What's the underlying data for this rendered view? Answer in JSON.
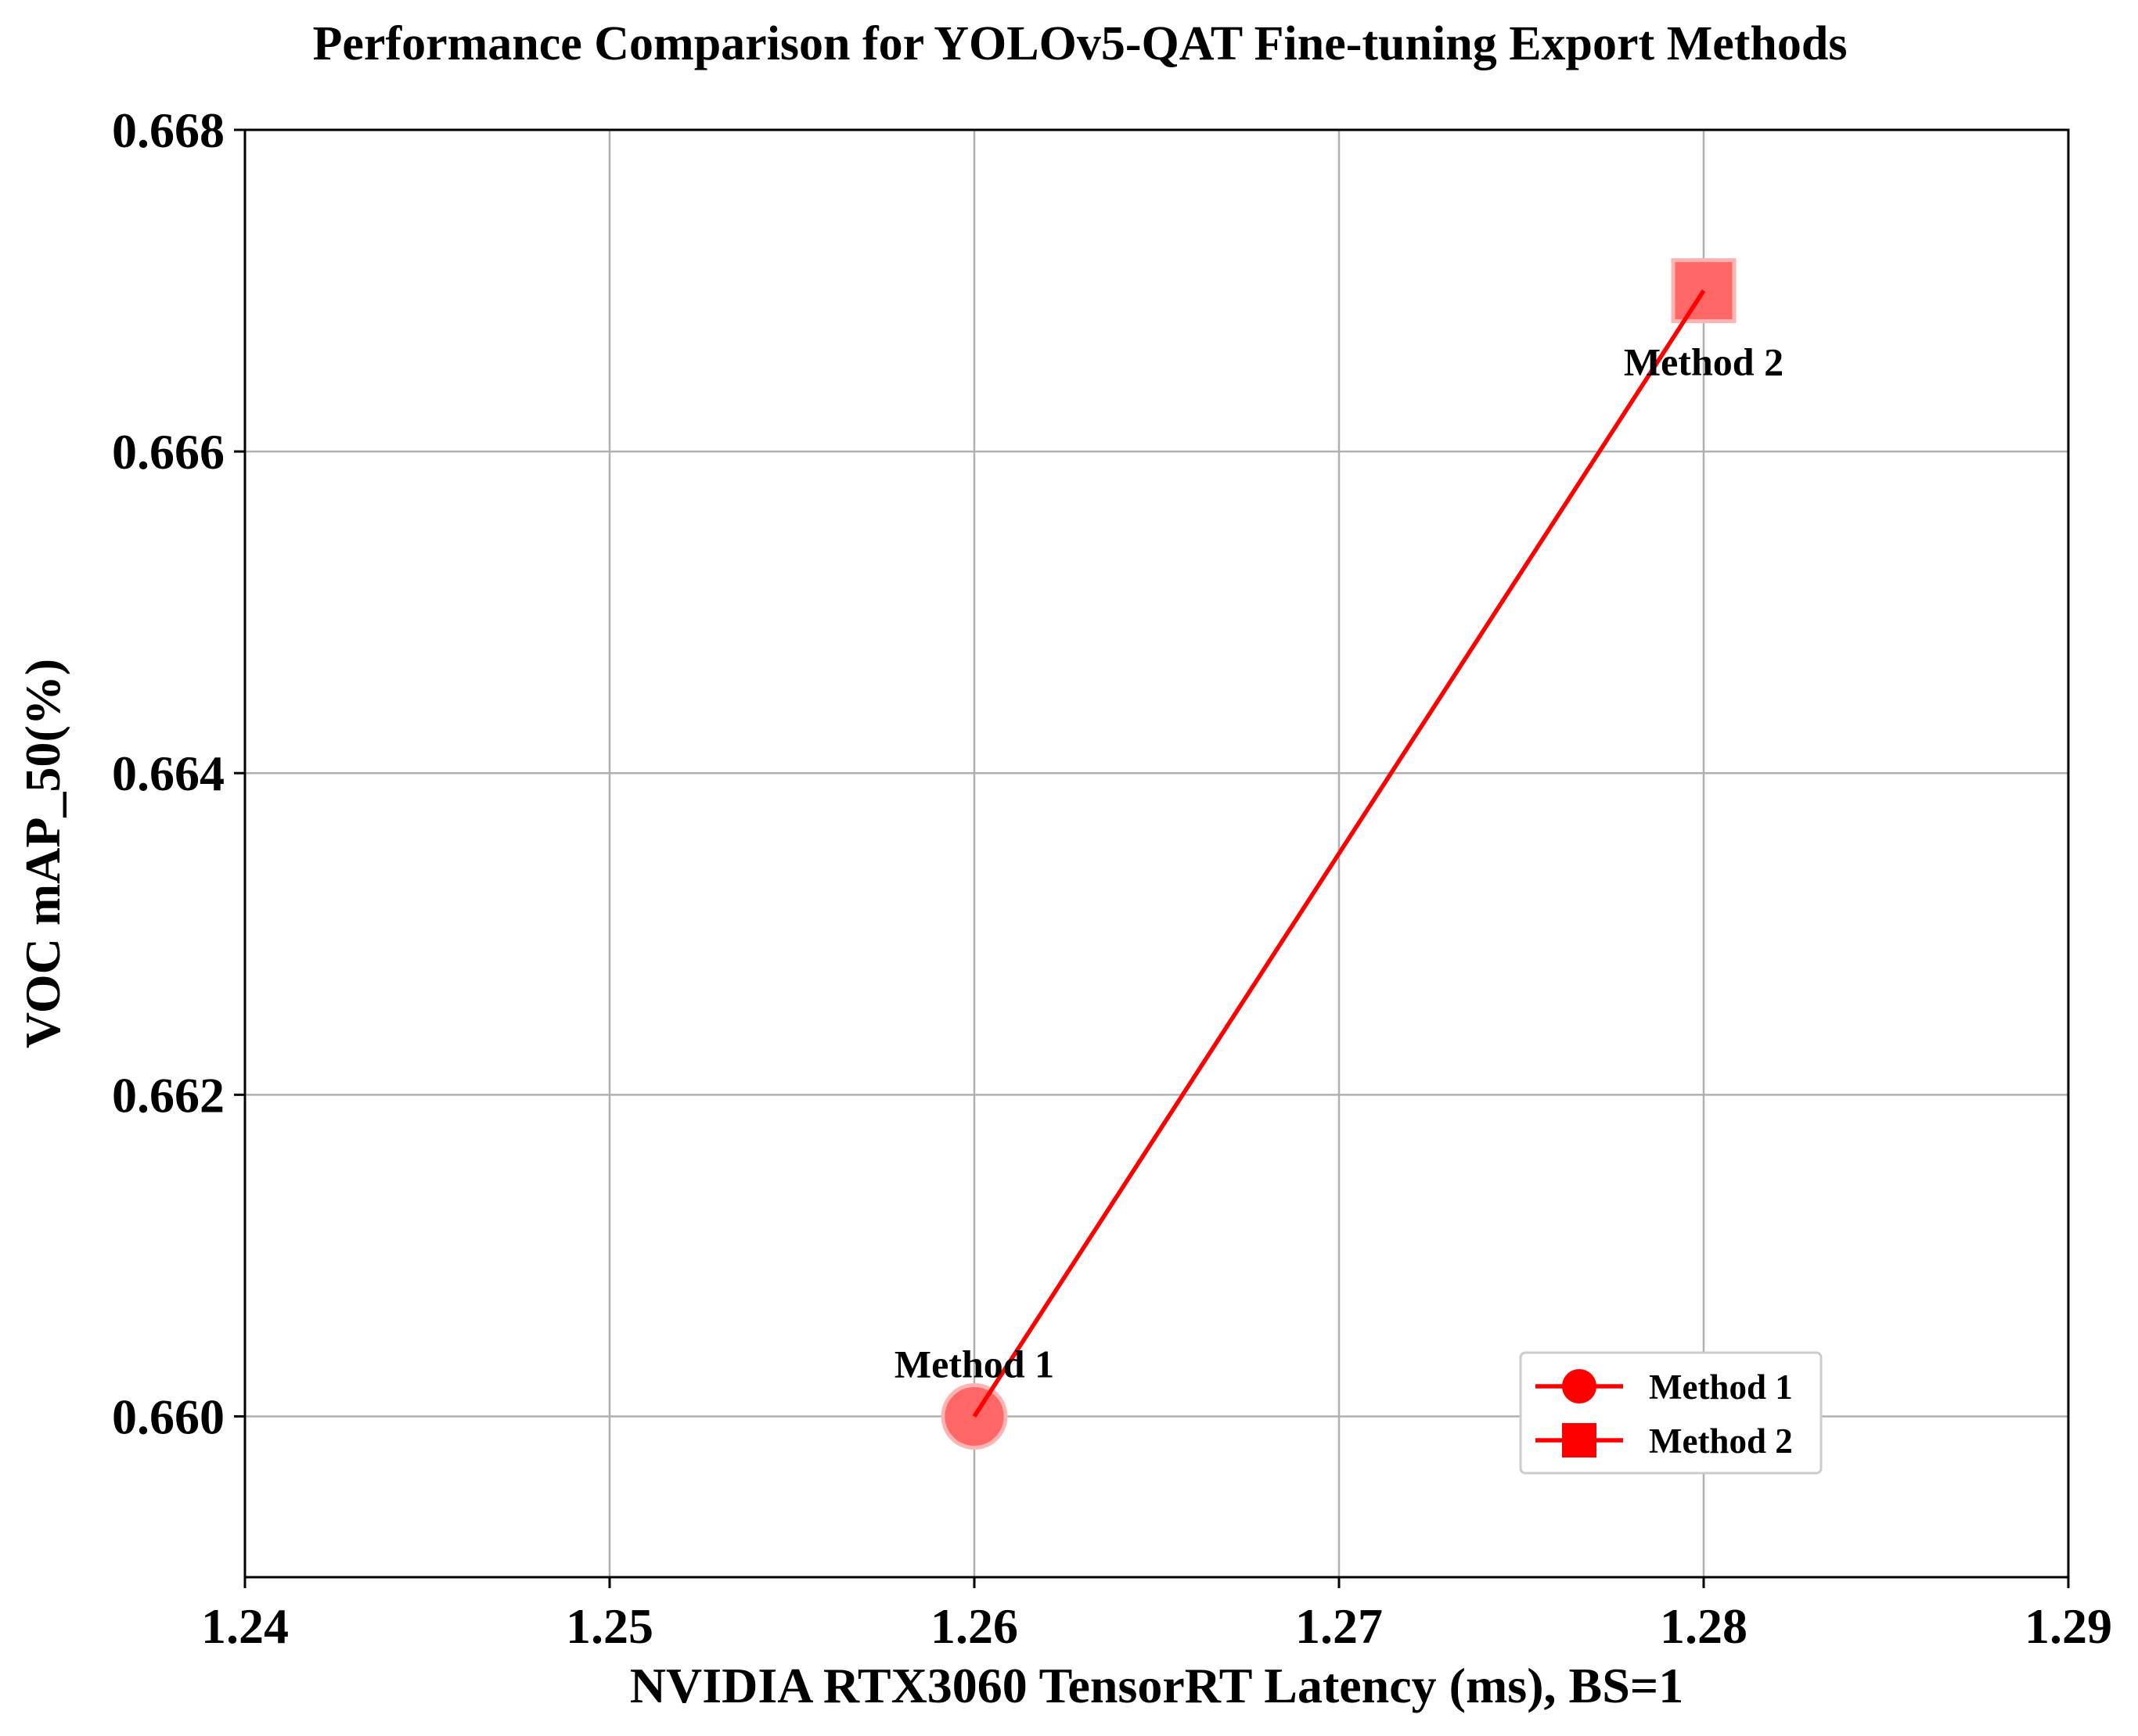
{
  "chart_data": {
    "type": "scatter",
    "title": "Performance Comparison for YOLOv5-QAT Fine-tuning Export Methods",
    "xlabel": "NVIDIA RTX3060 TensorRT Latency (ms), BS=1",
    "ylabel": "VOC mAP_50(%)",
    "xlim": [
      1.24,
      1.29
    ],
    "ylim": [
      0.659,
      0.668
    ],
    "xticks": [
      1.24,
      1.25,
      1.26,
      1.27,
      1.28,
      1.29
    ],
    "xtick_labels": [
      "1.24",
      "1.25",
      "1.26",
      "1.27",
      "1.28",
      "1.29"
    ],
    "yticks": [
      0.66,
      0.662,
      0.664,
      0.666,
      0.668
    ],
    "ytick_labels": [
      "0.660",
      "0.662",
      "0.664",
      "0.666",
      "0.668"
    ],
    "grid": true,
    "legend_position": "lower-right",
    "series": [
      {
        "name": "Method 1",
        "marker": "circle",
        "x": 1.26,
        "y": 0.66,
        "annotation": "Method 1",
        "annotation_side": "above"
      },
      {
        "name": "Method 2",
        "marker": "square",
        "x": 1.28,
        "y": 0.667,
        "annotation": "Method 2",
        "annotation_side": "below"
      }
    ],
    "line_color": "#ff0000",
    "marker_color": "#ff6666"
  }
}
